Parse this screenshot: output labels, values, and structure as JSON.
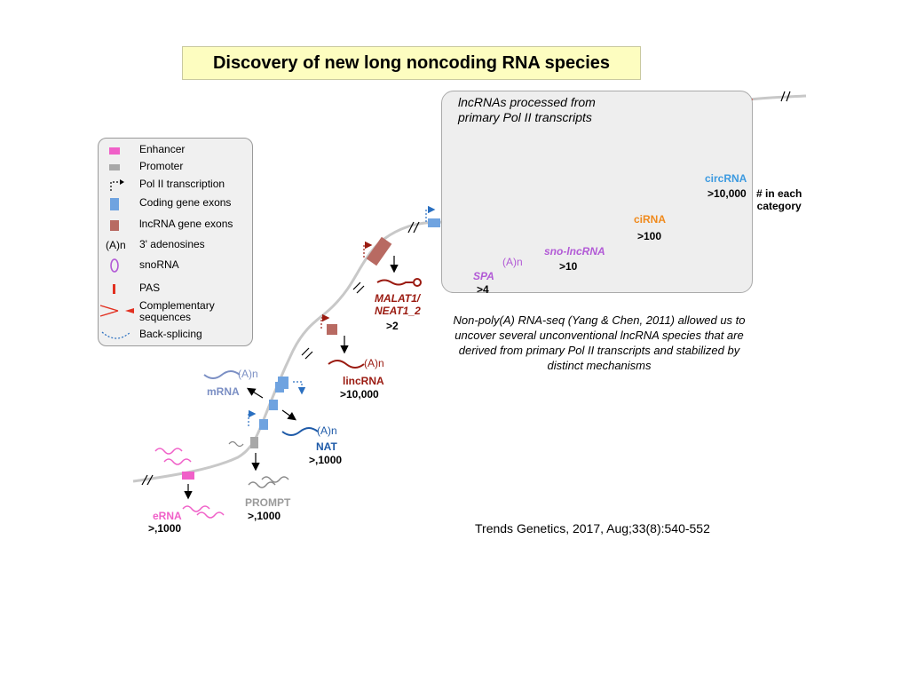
{
  "title": "Discovery of new long noncoding RNA species",
  "legend": [
    {
      "icon": "enhancer-icon",
      "label": "Enhancer"
    },
    {
      "icon": "promoter-icon",
      "label": "Promoter"
    },
    {
      "icon": "pol2-transcription-icon",
      "label": "Pol II transcription"
    },
    {
      "icon": "coding-exon-icon",
      "label": "Coding gene exons"
    },
    {
      "icon": "lncrna-exon-icon",
      "label": "lncRNA gene exons"
    },
    {
      "icon": "polya-icon",
      "symbol": "(A)n",
      "label": "3' adenosines"
    },
    {
      "icon": "snorna-icon",
      "label": "snoRNA"
    },
    {
      "icon": "pas-icon",
      "label": "PAS"
    },
    {
      "icon": "complementary-icon",
      "label": "Complementary\nsequences"
    },
    {
      "icon": "back-splicing-icon",
      "label": "Back-splicing"
    }
  ],
  "processed_box": {
    "title": "lncRNAs processed from\nprimary Pol II transcripts"
  },
  "polya": "(A)n",
  "species": {
    "erna": {
      "name": "eRNA",
      "count": ">,1000"
    },
    "prompt": {
      "name": "PROMPT",
      "count": ">,1000"
    },
    "mrna": {
      "name": "mRNA"
    },
    "nat": {
      "name": "NAT",
      "count": ">,1000"
    },
    "lincrna": {
      "name": "lincRNA",
      "count": ">10,000"
    },
    "malat1": {
      "name": "MALAT1/\nNEAT1_2",
      "count": ">2"
    },
    "spa": {
      "name": "SPA",
      "count": ">4"
    },
    "sno": {
      "name": "sno-lncRNA",
      "count": ">10"
    },
    "cirna": {
      "name": "ciRNA",
      "count": ">100"
    },
    "circrna": {
      "name": "circRNA",
      "count": ">10,000"
    }
  },
  "category_note": "# in each\ncategory",
  "description": "Non-poly(A) RNA-seq (Yang & Chen, 2011) allowed us to uncover several unconventional lncRNA species that are derived from primary Pol II transcripts and stabilized by distinct mechanisms",
  "citation": "Trends Genetics, 2017, Aug;33(8):540-552",
  "colors": {
    "enhancer": "#f060c8",
    "promoter": "#a8a8a8",
    "coding_exon": "#6fa3e0",
    "lncrna_exon": "#b86a62",
    "snorna": "#b25ad6",
    "pas": "#e23020",
    "mrna": "#7b8fc4",
    "nat": "#1e5aa8",
    "lincrna": "#9a1a10",
    "cirna": "#f08a1c",
    "circrna": "#3c9ae0",
    "prompt": "#9a9a9a"
  }
}
